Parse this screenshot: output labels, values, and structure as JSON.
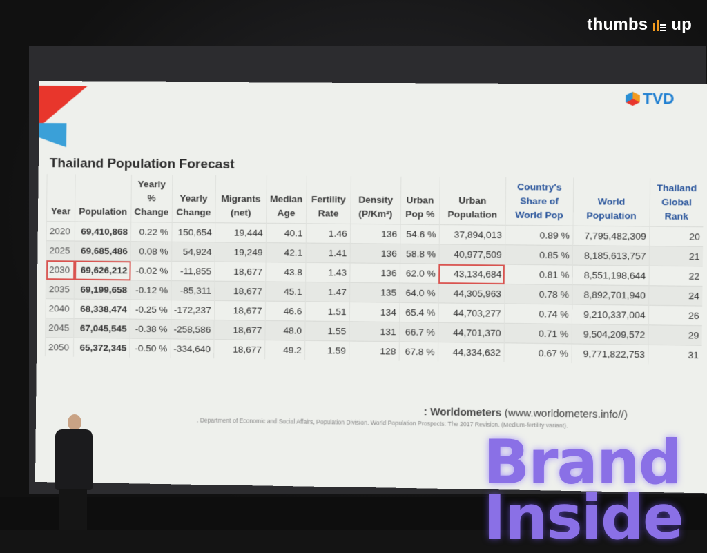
{
  "watermark": {
    "brand": "thumbs",
    "brand2": "up"
  },
  "logo": {
    "text": "TVD"
  },
  "title": "Thailand Population Forecast",
  "table": {
    "headers": [
      "Year",
      "Population",
      "Yearly % Change",
      "Yearly Change",
      "Migrants (net)",
      "Median Age",
      "Fertility Rate",
      "Density (P/Km²)",
      "Urban Pop %",
      "Urban Population",
      "Country's Share of World Pop",
      "World Population",
      "Thailand Global Rank"
    ],
    "rows": [
      [
        "2020",
        "69,410,868",
        "0.22 %",
        "150,654",
        "19,444",
        "40.1",
        "1.46",
        "136",
        "54.6 %",
        "37,894,013",
        "0.89 %",
        "7,795,482,309",
        "20"
      ],
      [
        "2025",
        "69,685,486",
        "0.08 %",
        "54,924",
        "19,249",
        "42.1",
        "1.41",
        "136",
        "58.8 %",
        "40,977,509",
        "0.85 %",
        "8,185,613,757",
        "21"
      ],
      [
        "2030",
        "69,626,212",
        "-0.02 %",
        "-11,855",
        "18,677",
        "43.8",
        "1.43",
        "136",
        "62.0 %",
        "43,134,684",
        "0.81 %",
        "8,551,198,644",
        "22"
      ],
      [
        "2035",
        "69,199,658",
        "-0.12 %",
        "-85,311",
        "18,677",
        "45.1",
        "1.47",
        "135",
        "64.0 %",
        "44,305,963",
        "0.78 %",
        "8,892,701,940",
        "24"
      ],
      [
        "2040",
        "68,338,474",
        "-0.25 %",
        "-172,237",
        "18,677",
        "46.6",
        "1.51",
        "134",
        "65.4 %",
        "44,703,277",
        "0.74 %",
        "9,210,337,004",
        "26"
      ],
      [
        "2045",
        "67,045,545",
        "-0.38 %",
        "-258,586",
        "18,677",
        "48.0",
        "1.55",
        "131",
        "66.7 %",
        "44,701,370",
        "0.71 %",
        "9,504,209,572",
        "29"
      ],
      [
        "2050",
        "65,372,345",
        "-0.50 %",
        "-334,640",
        "18,677",
        "49.2",
        "1.59",
        "128",
        "67.8 %",
        "44,334,632",
        "0.67 %",
        "9,771,822,753",
        "31"
      ]
    ]
  },
  "source": {
    "label": ": Worldometers",
    "url": "(www.worldometers.info//)"
  },
  "note": ". Department of Economic and Social Affairs, Population Division. World Population Prospects: The 2017 Revision. (Medium-fertility variant).",
  "sign": {
    "line1": "Brand",
    "line2": "Inside"
  },
  "colors": {
    "accent_red": "#e8362c",
    "accent_blue": "#26529a",
    "highlight": "#d9534f",
    "sign": "#8a70e6"
  }
}
